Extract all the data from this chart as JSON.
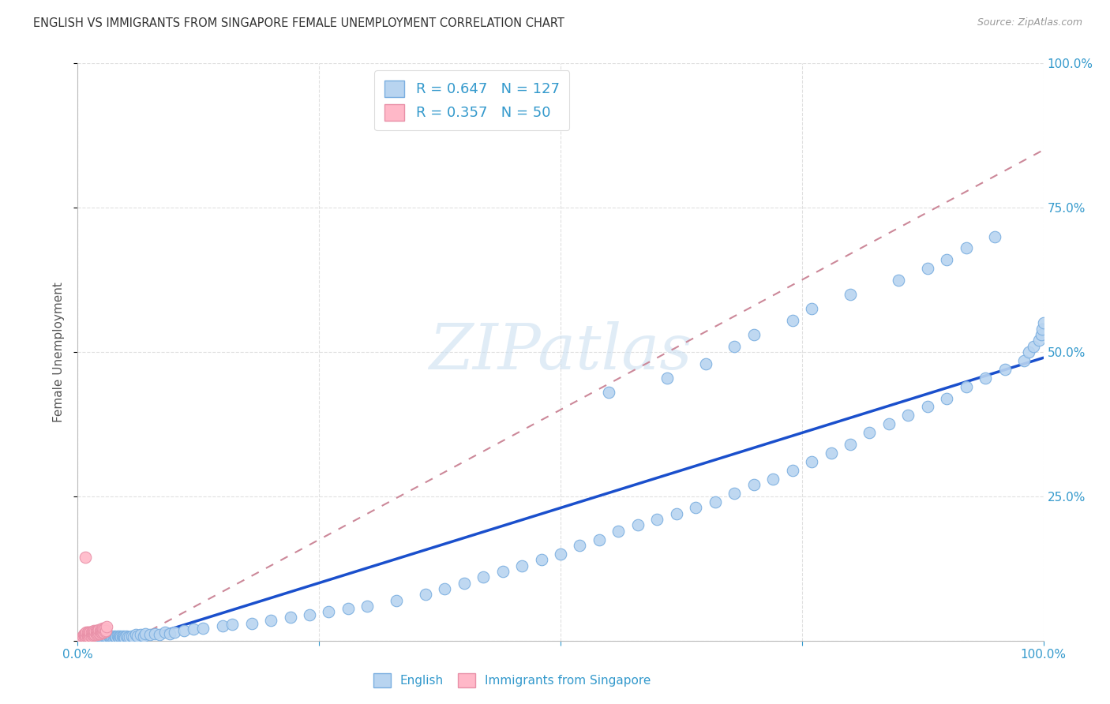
{
  "title": "ENGLISH VS IMMIGRANTS FROM SINGAPORE FEMALE UNEMPLOYMENT CORRELATION CHART",
  "source": "Source: ZipAtlas.com",
  "ylabel": "Female Unemployment",
  "xlim": [
    0,
    1.0
  ],
  "ylim": [
    0,
    1.0
  ],
  "grid_color": "#e0e0e0",
  "background_color": "#ffffff",
  "watermark": "ZIPatlas",
  "english_color": "#b8d4f0",
  "english_edge_color": "#7aaee0",
  "singapore_color": "#ffb8c8",
  "singapore_edge_color": "#e890a8",
  "trend_english_color": "#1a4fcc",
  "trend_singapore_color": "#cc8899",
  "trend_eng_slope": 0.52,
  "trend_eng_intercept": -0.03,
  "trend_sing_slope": 0.9,
  "trend_sing_intercept": -0.05,
  "english_x": [
    0.005,
    0.008,
    0.01,
    0.01,
    0.012,
    0.013,
    0.014,
    0.015,
    0.015,
    0.016,
    0.017,
    0.018,
    0.018,
    0.019,
    0.02,
    0.02,
    0.021,
    0.022,
    0.023,
    0.024,
    0.025,
    0.025,
    0.026,
    0.027,
    0.028,
    0.029,
    0.03,
    0.03,
    0.031,
    0.032,
    0.033,
    0.034,
    0.035,
    0.036,
    0.037,
    0.038,
    0.039,
    0.04,
    0.041,
    0.042,
    0.043,
    0.044,
    0.045,
    0.046,
    0.047,
    0.048,
    0.049,
    0.05,
    0.052,
    0.054,
    0.056,
    0.058,
    0.06,
    0.062,
    0.065,
    0.068,
    0.07,
    0.075,
    0.08,
    0.085,
    0.09,
    0.095,
    0.1,
    0.11,
    0.12,
    0.13,
    0.15,
    0.16,
    0.18,
    0.2,
    0.22,
    0.24,
    0.26,
    0.28,
    0.3,
    0.33,
    0.36,
    0.38,
    0.4,
    0.42,
    0.44,
    0.46,
    0.48,
    0.5,
    0.52,
    0.54,
    0.56,
    0.58,
    0.6,
    0.62,
    0.64,
    0.66,
    0.68,
    0.7,
    0.72,
    0.74,
    0.76,
    0.78,
    0.8,
    0.82,
    0.84,
    0.86,
    0.88,
    0.9,
    0.92,
    0.94,
    0.96,
    0.98,
    0.985,
    0.99,
    0.995,
    0.998,
    0.999,
    1.0,
    0.55,
    0.61,
    0.65,
    0.68,
    0.7,
    0.74,
    0.76,
    0.8,
    0.85,
    0.88,
    0.9,
    0.92,
    0.95
  ],
  "english_y": [
    0.005,
    0.008,
    0.01,
    0.005,
    0.008,
    0.007,
    0.006,
    0.008,
    0.005,
    0.007,
    0.006,
    0.008,
    0.005,
    0.007,
    0.008,
    0.005,
    0.007,
    0.006,
    0.008,
    0.007,
    0.006,
    0.008,
    0.005,
    0.007,
    0.006,
    0.008,
    0.007,
    0.005,
    0.006,
    0.008,
    0.007,
    0.006,
    0.008,
    0.007,
    0.005,
    0.008,
    0.007,
    0.006,
    0.008,
    0.007,
    0.005,
    0.008,
    0.007,
    0.006,
    0.008,
    0.007,
    0.005,
    0.008,
    0.007,
    0.006,
    0.008,
    0.007,
    0.01,
    0.008,
    0.01,
    0.008,
    0.012,
    0.01,
    0.012,
    0.01,
    0.015,
    0.012,
    0.015,
    0.018,
    0.02,
    0.022,
    0.025,
    0.028,
    0.03,
    0.035,
    0.04,
    0.045,
    0.05,
    0.055,
    0.06,
    0.07,
    0.08,
    0.09,
    0.1,
    0.11,
    0.12,
    0.13,
    0.14,
    0.15,
    0.165,
    0.175,
    0.19,
    0.2,
    0.21,
    0.22,
    0.23,
    0.24,
    0.255,
    0.27,
    0.28,
    0.295,
    0.31,
    0.325,
    0.34,
    0.36,
    0.375,
    0.39,
    0.405,
    0.42,
    0.44,
    0.455,
    0.47,
    0.485,
    0.5,
    0.51,
    0.52,
    0.53,
    0.54,
    0.55,
    0.43,
    0.455,
    0.48,
    0.51,
    0.53,
    0.555,
    0.575,
    0.6,
    0.625,
    0.645,
    0.66,
    0.68,
    0.7
  ],
  "singapore_x": [
    0.004,
    0.005,
    0.006,
    0.007,
    0.007,
    0.008,
    0.008,
    0.009,
    0.009,
    0.01,
    0.01,
    0.01,
    0.011,
    0.011,
    0.012,
    0.012,
    0.013,
    0.013,
    0.014,
    0.014,
    0.015,
    0.015,
    0.016,
    0.016,
    0.017,
    0.017,
    0.018,
    0.018,
    0.019,
    0.019,
    0.02,
    0.02,
    0.021,
    0.021,
    0.022,
    0.022,
    0.023,
    0.023,
    0.024,
    0.024,
    0.025,
    0.025,
    0.026,
    0.026,
    0.027,
    0.027,
    0.028,
    0.028,
    0.029,
    0.03
  ],
  "singapore_y": [
    0.005,
    0.008,
    0.01,
    0.008,
    0.012,
    0.007,
    0.012,
    0.008,
    0.014,
    0.006,
    0.01,
    0.015,
    0.008,
    0.014,
    0.007,
    0.013,
    0.009,
    0.015,
    0.008,
    0.014,
    0.01,
    0.016,
    0.009,
    0.015,
    0.011,
    0.017,
    0.01,
    0.016,
    0.012,
    0.018,
    0.011,
    0.017,
    0.012,
    0.018,
    0.013,
    0.019,
    0.012,
    0.018,
    0.014,
    0.02,
    0.013,
    0.019,
    0.015,
    0.021,
    0.014,
    0.02,
    0.016,
    0.022,
    0.018,
    0.024
  ],
  "singapore_outlier_x": [
    0.008
  ],
  "singapore_outlier_y": [
    0.145
  ]
}
